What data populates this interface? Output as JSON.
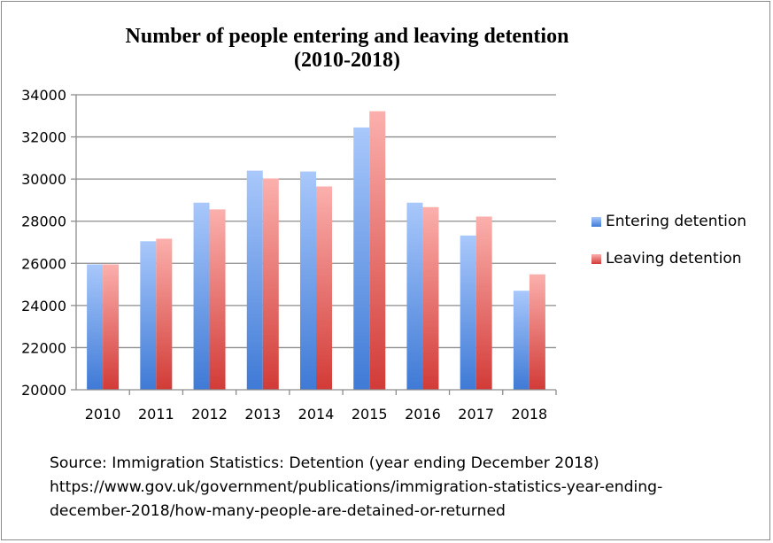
{
  "chart_data": {
    "type": "bar",
    "title_lines": [
      "Number of people entering and leaving detention",
      "(2010-2018)"
    ],
    "categories": [
      "2010",
      "2011",
      "2012",
      "2013",
      "2014",
      "2015",
      "2016",
      "2017",
      "2018"
    ],
    "series": [
      {
        "name": "Entering detention",
        "values": [
          25950,
          27050,
          28880,
          30400,
          30360,
          32450,
          28880,
          27320,
          24700
        ],
        "color": "#6e9ee8"
      },
      {
        "name": "Leaving detention",
        "values": [
          25950,
          27170,
          28560,
          30030,
          29650,
          33220,
          28670,
          28220,
          25480
        ],
        "color": "#ec7070"
      }
    ],
    "ylim": [
      20000,
      34000
    ],
    "yticks": [
      "20000",
      "22000",
      "24000",
      "26000",
      "28000",
      "30000",
      "32000",
      "34000"
    ],
    "grid": true,
    "legend_position": "right"
  },
  "source": {
    "lines": [
      "Source: Immigration Statistics: Detention (year ending December 2018)",
      "https://www.gov.uk/government/publications/immigration-statistics-year-ending-",
      "december-2018/how-many-people-are-detained-or-returned"
    ]
  }
}
